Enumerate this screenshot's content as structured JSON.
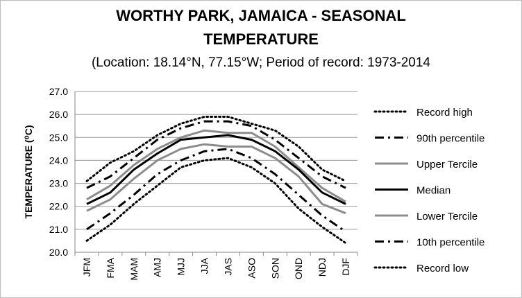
{
  "chart_data": {
    "type": "line",
    "title_line1": "WORTHY PARK, JAMAICA - SEASONAL",
    "title_line2": "TEMPERATURE",
    "subtitle": "(Location: 18.14°N, 77.15°W; Period of record: 1973-2014",
    "xlabel": "",
    "ylabel": "TEMPERATURE (⁰C)",
    "ylim": [
      20.0,
      27.0
    ],
    "yticks": [
      "20.0",
      "21.0",
      "22.0",
      "23.0",
      "24.0",
      "25.0",
      "26.0",
      "27.0"
    ],
    "grid": true,
    "legend_position": "right",
    "categories": [
      "JFM",
      "FMA",
      "MAM",
      "AMJ",
      "MJJ",
      "JJA",
      "JAS",
      "ASO",
      "SON",
      "OND",
      "NDJ",
      "DJF"
    ],
    "series": [
      {
        "name": "Record high",
        "style": "dotted",
        "color": "#000000",
        "values": [
          23.1,
          23.9,
          24.4,
          25.1,
          25.6,
          25.9,
          25.9,
          25.6,
          25.3,
          24.6,
          23.6,
          23.1
        ]
      },
      {
        "name": "90th percentile",
        "style": "dashdot",
        "color": "#000000",
        "values": [
          22.8,
          23.3,
          24.1,
          24.9,
          25.4,
          25.7,
          25.7,
          25.5,
          24.9,
          24.1,
          23.3,
          22.8
        ]
      },
      {
        "name": "Upper Tercile",
        "style": "solid-gray",
        "color": "#8c8c8c",
        "values": [
          22.3,
          22.9,
          23.8,
          24.5,
          25.0,
          25.3,
          25.2,
          25.2,
          24.6,
          23.7,
          22.8,
          22.2
        ]
      },
      {
        "name": "Median",
        "style": "solid-black",
        "color": "#000000",
        "values": [
          22.1,
          22.6,
          23.6,
          24.3,
          24.9,
          25.0,
          25.1,
          24.9,
          24.4,
          23.6,
          22.6,
          22.1
        ]
      },
      {
        "name": "Lower Tercile",
        "style": "solid-gray",
        "color": "#8c8c8c",
        "values": [
          21.8,
          22.3,
          23.2,
          24.0,
          24.5,
          24.7,
          24.6,
          24.6,
          24.1,
          23.3,
          22.1,
          21.7
        ]
      },
      {
        "name": "10th percentile",
        "style": "dashdot",
        "color": "#000000",
        "values": [
          21.0,
          21.7,
          22.5,
          23.4,
          24.0,
          24.4,
          24.5,
          24.1,
          23.4,
          22.5,
          21.6,
          20.9
        ]
      },
      {
        "name": "Record low",
        "style": "dotted",
        "color": "#000000",
        "values": [
          20.5,
          21.2,
          22.1,
          22.9,
          23.7,
          24.0,
          24.1,
          23.7,
          23.0,
          21.9,
          21.1,
          20.4
        ]
      }
    ]
  }
}
